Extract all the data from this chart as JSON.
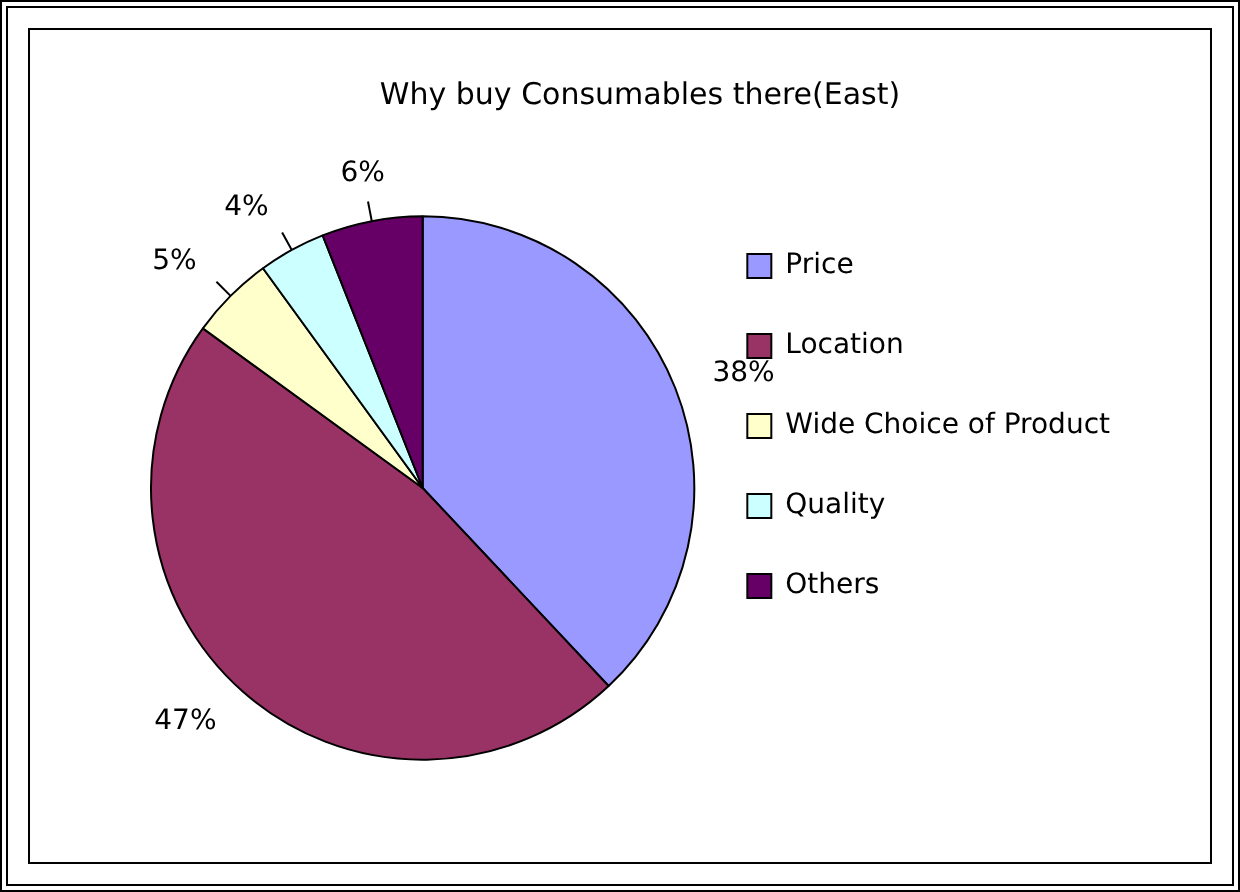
{
  "chart_data": {
    "type": "pie",
    "title": "Why buy Consumables there(East)",
    "categories": [
      "Price",
      "Location",
      "Wide Choice of Product",
      "Quality",
      "Others"
    ],
    "values": [
      38,
      47,
      5,
      4,
      6
    ],
    "colors": [
      "#9999ff",
      "#993366",
      "#ffffcc",
      "#ccffff",
      "#660066"
    ],
    "value_labels": [
      "38%",
      "47%",
      "5%",
      "4%",
      "6%"
    ],
    "legend": "right"
  }
}
